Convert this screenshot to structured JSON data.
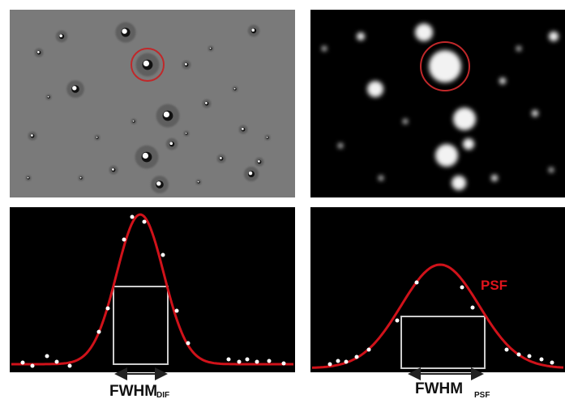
{
  "panels": [
    {
      "label": "FWHM",
      "subscript": "DIF"
    },
    {
      "label": "FWHM",
      "subscript": "PSF",
      "curve_label": "PSF"
    }
  ]
}
